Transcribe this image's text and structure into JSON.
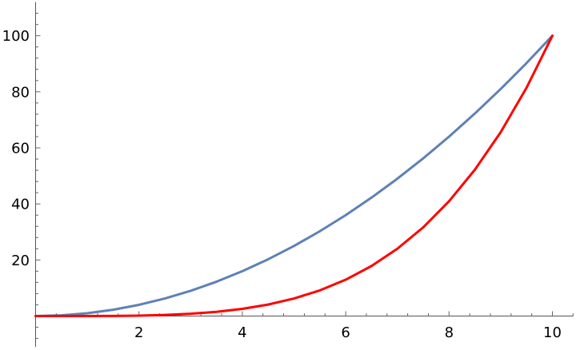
{
  "chart_data": {
    "type": "line",
    "title": "",
    "xlabel": "",
    "ylabel": "",
    "xlim": [
      0,
      10.4
    ],
    "ylim": [
      -11,
      112
    ],
    "grid": false,
    "legend": "none",
    "x_ticks": [
      {
        "value": 2,
        "label": "2"
      },
      {
        "value": 4,
        "label": "4"
      },
      {
        "value": 6,
        "label": "6"
      },
      {
        "value": 8,
        "label": "8"
      },
      {
        "value": 10,
        "label": "10"
      }
    ],
    "y_ticks": [
      {
        "value": 20,
        "label": "20"
      },
      {
        "value": 40,
        "label": "40"
      },
      {
        "value": 60,
        "label": "60"
      },
      {
        "value": 80,
        "label": "80"
      },
      {
        "value": 100,
        "label": "100"
      }
    ],
    "series": [
      {
        "color": "#5e81b5",
        "x": [
          0,
          0.5,
          1,
          1.5,
          2,
          2.5,
          3,
          3.5,
          4,
          4.5,
          5,
          5.5,
          6,
          6.5,
          7,
          7.5,
          8,
          8.5,
          9,
          9.5,
          10
        ],
        "y": [
          0,
          0.25,
          1,
          2.25,
          4,
          6.25,
          9,
          12.25,
          16,
          20.25,
          25,
          30.25,
          36,
          42.25,
          49,
          56.25,
          64,
          72.25,
          81,
          90.25,
          100
        ]
      },
      {
        "color": "#ff0000",
        "x": [
          0,
          0.5,
          1,
          1.5,
          2,
          2.5,
          3,
          3.5,
          4,
          4.5,
          5,
          5.5,
          6,
          6.5,
          7,
          7.5,
          8,
          8.5,
          9,
          9.5,
          10
        ],
        "y": [
          0,
          0.0006,
          0.01,
          0.05,
          0.16,
          0.39,
          0.81,
          1.5,
          2.56,
          4.1,
          6.25,
          9.15,
          12.96,
          17.85,
          24.01,
          31.64,
          40.96,
          52.2,
          65.61,
          81.45,
          100
        ]
      }
    ]
  }
}
